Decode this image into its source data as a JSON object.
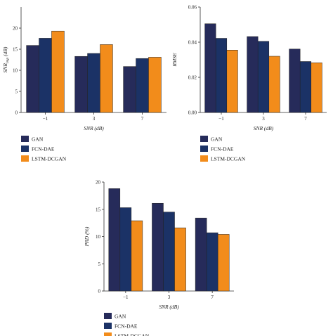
{
  "colors": {
    "GAN": "#262b5a",
    "FCN-DAE": "#1b3266",
    "LSTM-DCGAN": "#f28c1b"
  },
  "chart_data": [
    {
      "type": "bar",
      "categories": [
        "−1",
        "3",
        "7"
      ],
      "xlabel": "SNR (dB)",
      "ylabel": "SNR_imp (dB)",
      "ylabel_base": "SNR",
      "ylabel_sub": "imp",
      "ylabel_unit": " (dB)",
      "ylim": [
        0,
        25
      ],
      "yticks": [
        "0",
        "5",
        "10",
        "15",
        "20"
      ],
      "ytick_values": [
        0,
        5,
        10,
        15,
        20
      ],
      "legend": "below",
      "series": [
        {
          "name": "GAN",
          "values": [
            15.9,
            13.3,
            10.9
          ]
        },
        {
          "name": "FCN-DAE",
          "values": [
            17.6,
            14.0,
            12.8
          ]
        },
        {
          "name": "LSTM-DCGAN",
          "values": [
            19.3,
            16.1,
            13.1
          ]
        }
      ]
    },
    {
      "type": "bar",
      "categories": [
        "−1",
        "3",
        "7"
      ],
      "xlabel": "SNR (dB)",
      "ylabel": "RMSE",
      "ylim": [
        0,
        0.06
      ],
      "yticks": [
        "0.00",
        "0.02",
        "0.04",
        "0.06"
      ],
      "ytick_values": [
        0,
        0.02,
        0.04,
        0.06
      ],
      "legend": "below",
      "series": [
        {
          "name": "GAN",
          "values": [
            0.0505,
            0.0432,
            0.0361
          ]
        },
        {
          "name": "FCN-DAE",
          "values": [
            0.0422,
            0.0405,
            0.029
          ]
        },
        {
          "name": "LSTM-DCGAN",
          "values": [
            0.0355,
            0.032,
            0.0283
          ]
        }
      ]
    },
    {
      "type": "bar",
      "categories": [
        "−1",
        "3",
        "7"
      ],
      "xlabel": "SNR (dB)",
      "ylabel": "PRD (%)",
      "ylim": [
        0,
        20
      ],
      "yticks": [
        "0",
        "5",
        "10",
        "15",
        "20"
      ],
      "ytick_values": [
        0,
        5,
        10,
        15,
        20
      ],
      "legend": "below",
      "series": [
        {
          "name": "GAN",
          "values": [
            18.8,
            16.1,
            13.4
          ]
        },
        {
          "name": "FCN-DAE",
          "values": [
            15.3,
            14.5,
            10.7
          ]
        },
        {
          "name": "LSTM-DCGAN",
          "values": [
            12.9,
            11.6,
            10.4
          ]
        }
      ]
    }
  ]
}
